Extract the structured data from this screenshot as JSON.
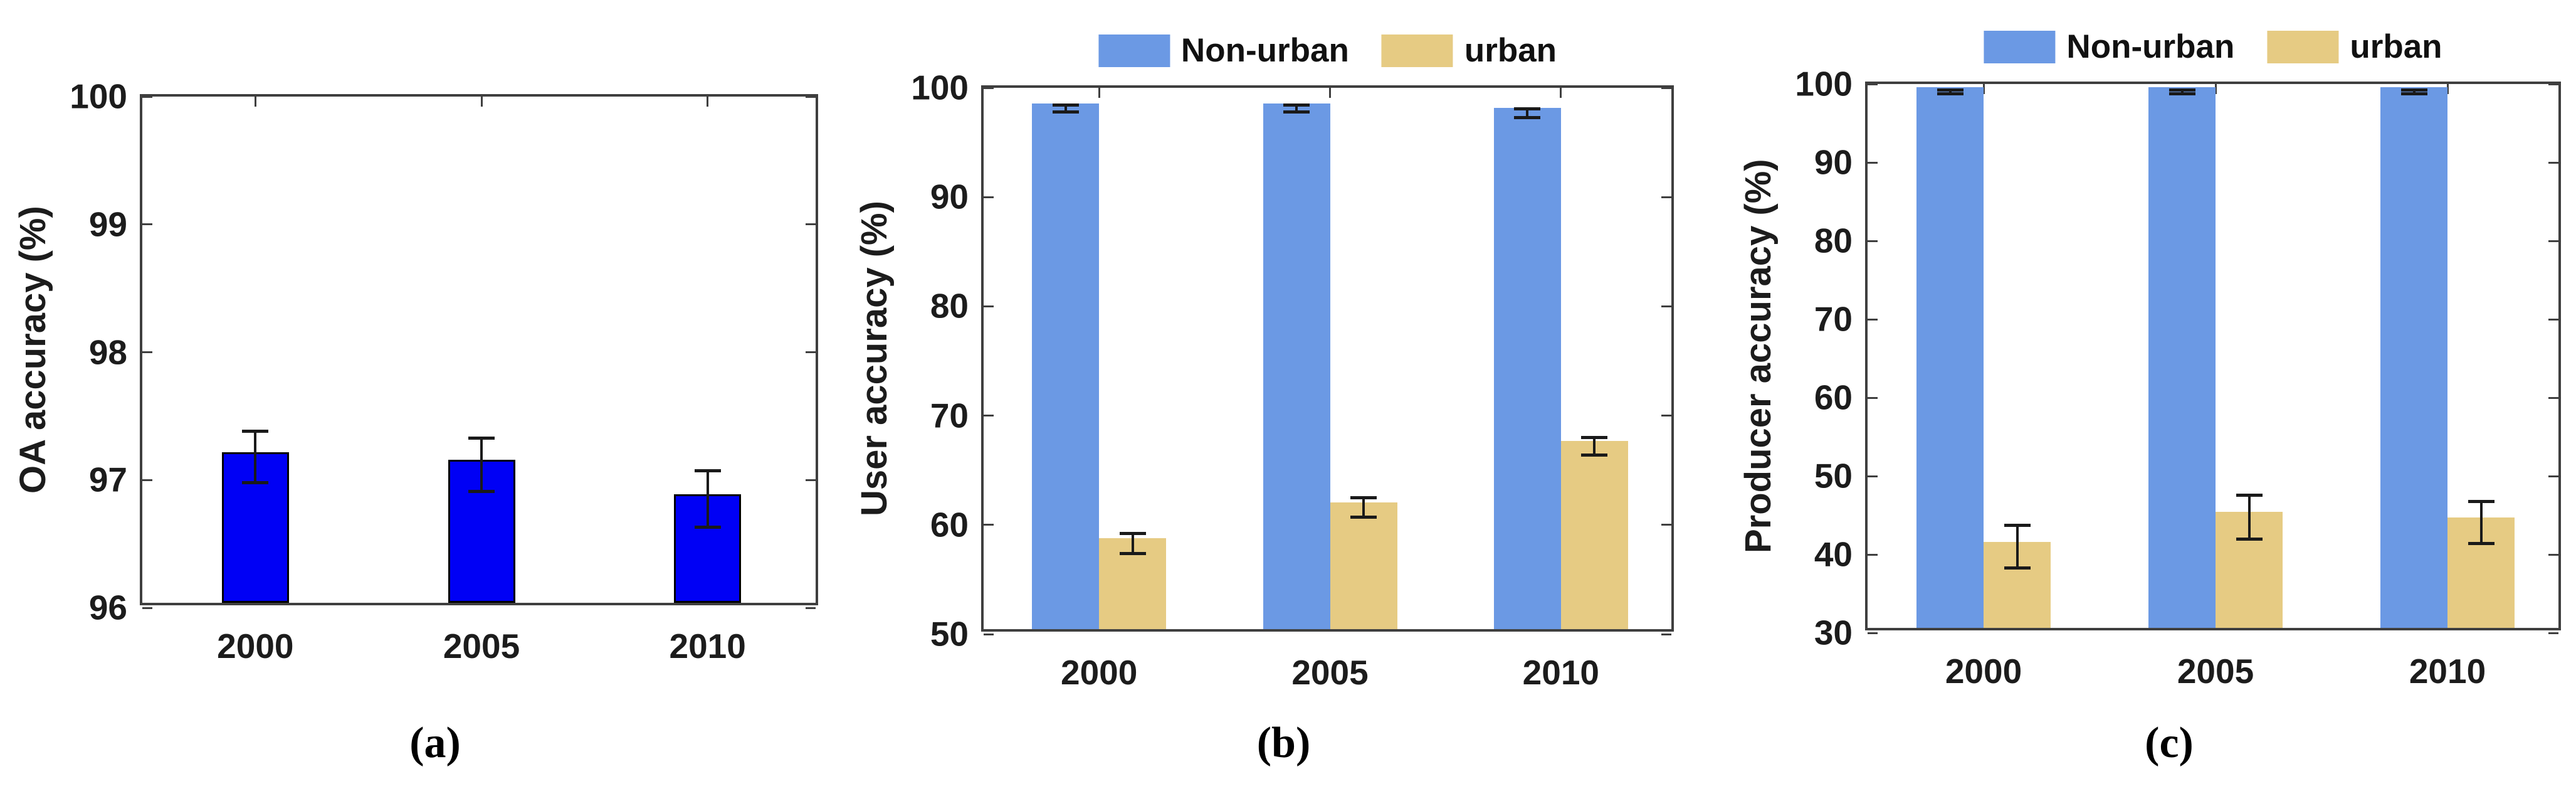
{
  "figure": {
    "background": "#ffffff",
    "axis_color": "#3f3f3f",
    "text_color": "#1c1c1c"
  },
  "chart_data": [
    {
      "id": "a",
      "type": "bar",
      "caption": "(a)",
      "title": "",
      "xlabel": "",
      "ylabel": "OA accuracy (%)",
      "categories": [
        "2000",
        "2005",
        "2010"
      ],
      "ylim": [
        96,
        100
      ],
      "yticks": [
        "96",
        "97",
        "98",
        "99",
        "100"
      ],
      "grid": false,
      "legend": null,
      "error_bar_color": "#1a1a1a",
      "series": [
        {
          "name": "OA accuracy",
          "color": "#0000f5",
          "edge_color": "#000000",
          "values": [
            97.18,
            97.12,
            96.85
          ],
          "errors": [
            0.2,
            0.21,
            0.22
          ]
        }
      ]
    },
    {
      "id": "b",
      "type": "bar",
      "caption": "(b)",
      "title": "",
      "xlabel": "",
      "ylabel": "User accuracy (%)",
      "categories": [
        "2000",
        "2005",
        "2010"
      ],
      "ylim": [
        50,
        100
      ],
      "yticks": [
        "50",
        "60",
        "70",
        "80",
        "90",
        "100"
      ],
      "grid": false,
      "legend": {
        "position": "top",
        "labels": [
          "Non-urban",
          "urban"
        ]
      },
      "error_bar_color": "#1a1a1a",
      "series": [
        {
          "name": "Non-urban",
          "color": "#6b99e4",
          "edge_color": null,
          "values": [
            98.1,
            98.1,
            97.7
          ],
          "errors": [
            0.3,
            0.3,
            0.4
          ]
        },
        {
          "name": "urban",
          "color": "#e6cb83",
          "edge_color": null,
          "values": [
            58.3,
            61.6,
            67.2
          ],
          "errors": [
            0.9,
            0.9,
            0.8
          ]
        }
      ]
    },
    {
      "id": "c",
      "type": "bar",
      "caption": "(c)",
      "title": "",
      "xlabel": "",
      "ylabel": "Producer accuracy (%)",
      "categories": [
        "2000",
        "2005",
        "2010"
      ],
      "ylim": [
        30,
        100
      ],
      "yticks": [
        "30",
        "40",
        "50",
        "60",
        "70",
        "80",
        "90",
        "100"
      ],
      "grid": false,
      "legend": {
        "position": "top",
        "labels": [
          "Non-urban",
          "urban"
        ]
      },
      "error_bar_color": "#1a1a1a",
      "series": [
        {
          "name": "Non-urban",
          "color": "#6b99e4",
          "edge_color": null,
          "values": [
            99.0,
            99.0,
            99.0
          ],
          "errors": [
            0.25,
            0.25,
            0.25
          ]
        },
        {
          "name": "urban",
          "color": "#e6cb83",
          "edge_color": null,
          "values": [
            41.0,
            44.8,
            44.1
          ],
          "errors": [
            2.7,
            2.8,
            2.7
          ]
        }
      ]
    }
  ]
}
